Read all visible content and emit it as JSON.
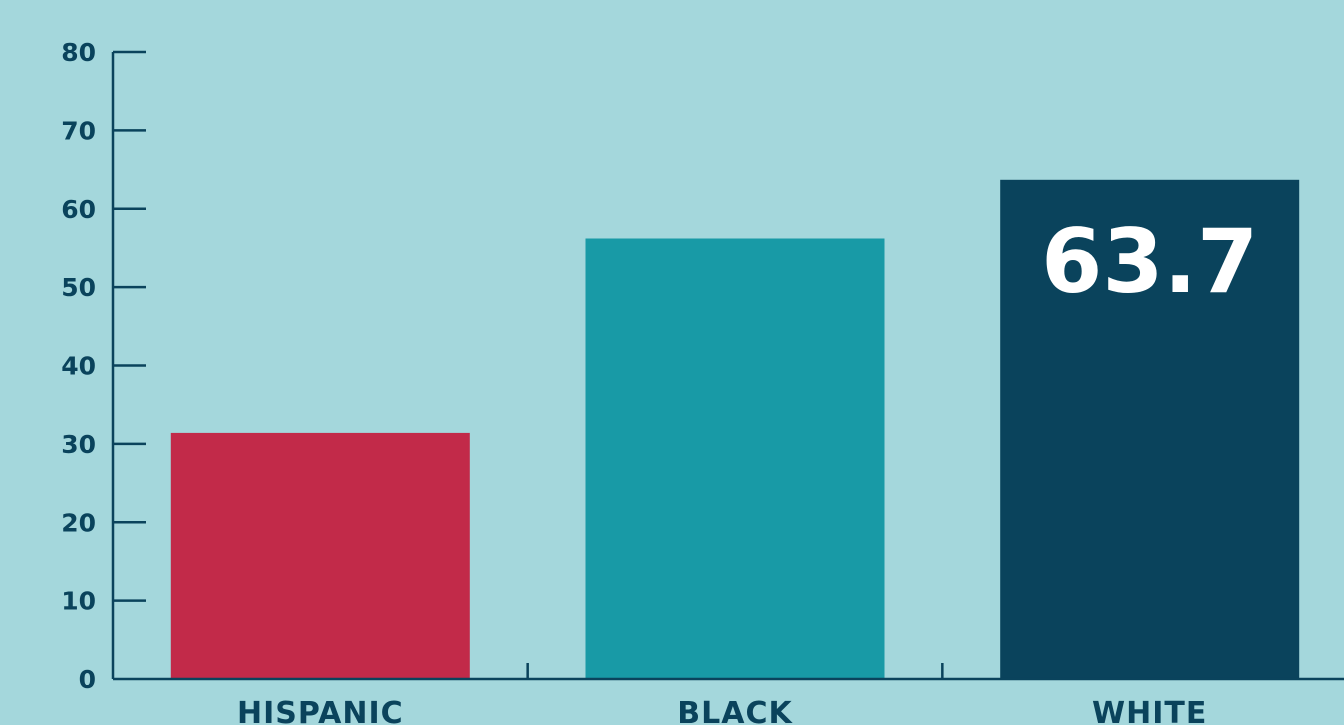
{
  "chart_data": {
    "type": "bar",
    "title": "",
    "xlabel": "",
    "ylabel": "",
    "categories": [
      "HISPANIC",
      "BLACK",
      "WHITE"
    ],
    "values": [
      31.4,
      56.2,
      63.7
    ],
    "bar_colors": [
      "#c22a49",
      "#189aa6",
      "#0a435c"
    ],
    "data_labels": [
      "",
      "",
      "63.7"
    ],
    "ylim": [
      0,
      80
    ],
    "y_ticks": [
      "0",
      "10",
      "20",
      "30",
      "40",
      "50",
      "60",
      "70",
      "80"
    ],
    "grid": false,
    "legend": "none"
  },
  "colors": {
    "background": "#a4d7dc",
    "axis": "#0a435c",
    "text": "#0a435c",
    "data_label": "#ffffff"
  }
}
